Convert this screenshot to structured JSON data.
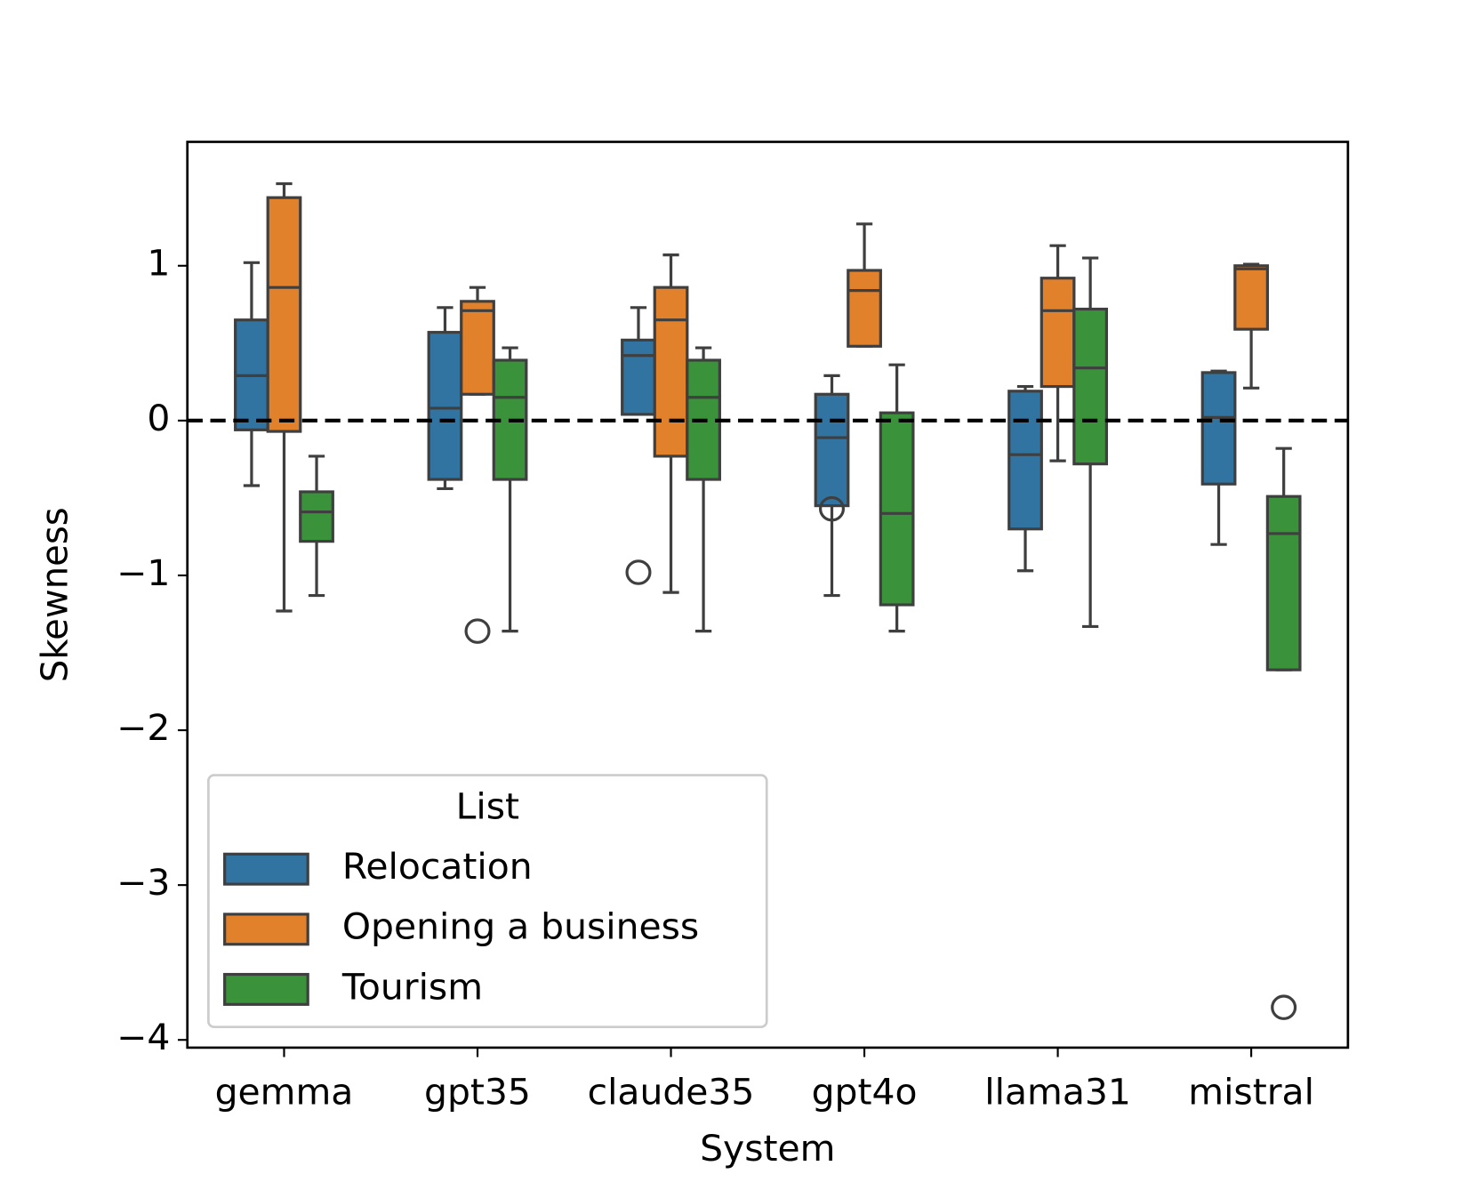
{
  "chart_data": {
    "type": "box",
    "xlabel": "System",
    "ylabel": "Skewness",
    "categories": [
      "gemma",
      "gpt35",
      "claude35",
      "gpt4o",
      "llama31",
      "mistral"
    ],
    "ylim": [
      -4.05,
      1.8
    ],
    "yticks": [
      {
        "value": -4,
        "label": "−4"
      },
      {
        "value": -3,
        "label": "−3"
      },
      {
        "value": -2,
        "label": "−2"
      },
      {
        "value": -1,
        "label": "−1"
      },
      0,
      1
    ],
    "hline": 0,
    "legend_title": "List",
    "legend_position": "lower left",
    "series": [
      {
        "name": "Relocation",
        "color": "#3274a1",
        "low": [
          -0.42,
          -0.44,
          0.04,
          -1.13,
          -0.97,
          -0.8
        ],
        "q1": [
          -0.06,
          -0.38,
          0.04,
          -0.55,
          -0.7,
          -0.41
        ],
        "median": [
          0.29,
          0.08,
          0.42,
          -0.11,
          -0.22,
          0.02
        ],
        "q3": [
          0.65,
          0.57,
          0.52,
          0.17,
          0.19,
          0.31
        ],
        "high": [
          1.02,
          0.73,
          0.73,
          0.29,
          0.22,
          0.32
        ],
        "outliers": [
          [],
          [],
          [
            -0.98
          ],
          [
            -0.57
          ],
          [],
          []
        ]
      },
      {
        "name": "Opening a business",
        "color": "#e1812c",
        "low": [
          -1.23,
          0.17,
          -1.11,
          0.48,
          -0.26,
          0.21
        ],
        "q1": [
          -0.07,
          0.17,
          -0.23,
          0.48,
          0.22,
          0.59
        ],
        "median": [
          0.86,
          0.71,
          0.65,
          0.84,
          0.71,
          0.98
        ],
        "q3": [
          1.44,
          0.77,
          0.86,
          0.97,
          0.92,
          1.0
        ],
        "high": [
          1.53,
          0.86,
          1.07,
          1.27,
          1.13,
          1.01
        ],
        "outliers": [
          [],
          [
            -1.36
          ],
          [],
          [],
          [],
          []
        ]
      },
      {
        "name": "Tourism",
        "color": "#3a923a",
        "low": [
          -1.13,
          -1.36,
          -1.36,
          -1.36,
          -1.33,
          -1.61
        ],
        "q1": [
          -0.78,
          -0.38,
          -0.38,
          -1.19,
          -0.28,
          -1.61
        ],
        "median": [
          -0.59,
          0.15,
          0.15,
          -0.6,
          0.34,
          -0.73
        ],
        "q3": [
          -0.46,
          0.39,
          0.39,
          0.05,
          0.72,
          -0.49
        ],
        "high": [
          -0.23,
          0.47,
          0.47,
          0.36,
          1.05,
          -0.18
        ],
        "outliers": [
          [],
          [],
          [],
          [],
          [],
          [
            -3.79
          ]
        ]
      }
    ]
  }
}
